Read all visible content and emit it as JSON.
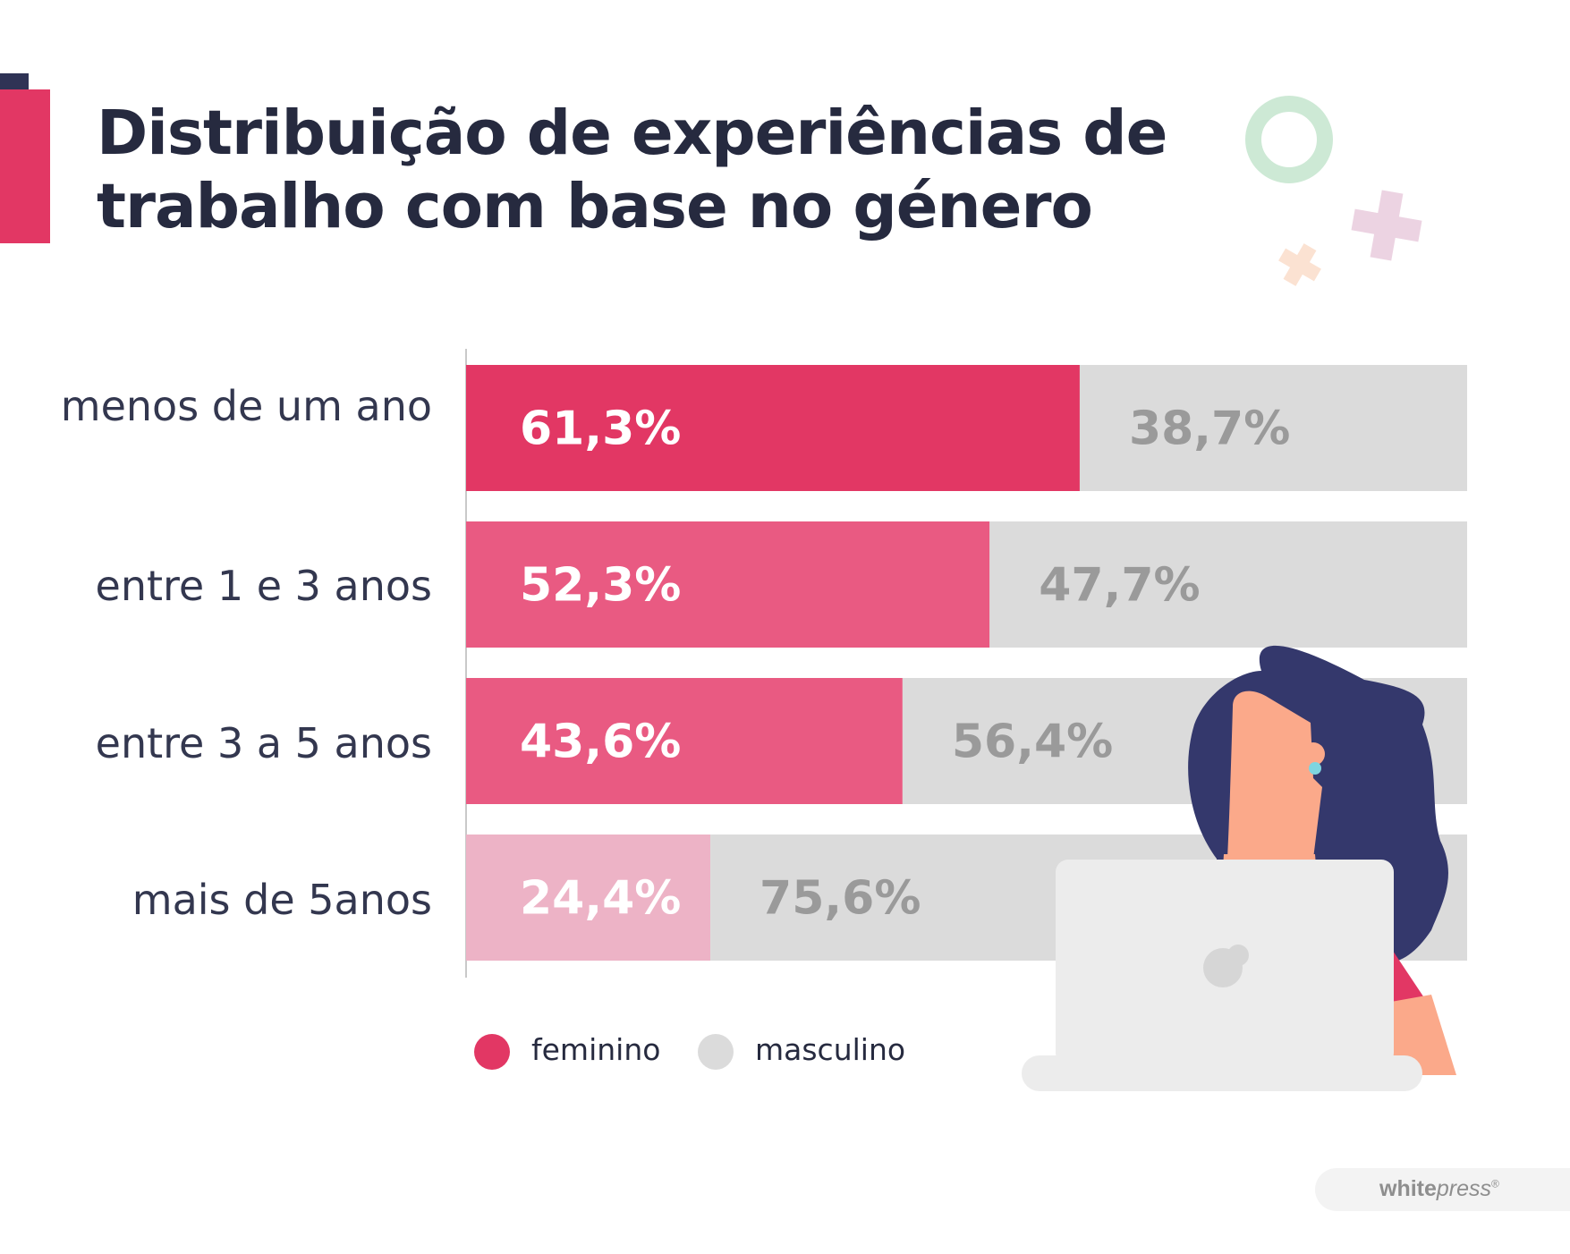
{
  "title": {
    "line1": "Distribuição de experiências de",
    "line2": "trabalho com base no género"
  },
  "colors": {
    "accent": "#e23764",
    "feminino": [
      "#e23764",
      "#e95a82",
      "#e95a82",
      "#edb3c6"
    ],
    "masculino": "#dbdbdb",
    "masculino_label": "#9a9a9a",
    "text": "#262a3f"
  },
  "chart_data": {
    "type": "bar",
    "orientation": "horizontal",
    "stacked": true,
    "normalized": true,
    "categories": [
      "menos de um ano",
      "entre 1 e 3 anos",
      "entre 3 a 5 anos",
      "mais de 5anos"
    ],
    "series": [
      {
        "name": "feminino",
        "values": [
          61.3,
          52.3,
          43.6,
          24.4
        ],
        "labels": [
          "61,3%",
          "52,3%",
          "43,6%",
          "24,4%"
        ]
      },
      {
        "name": "masculino",
        "values": [
          38.7,
          47.7,
          56.4,
          75.6
        ],
        "labels": [
          "38,7%",
          "47,7%",
          "56,4%",
          "75,6%"
        ]
      }
    ],
    "xlim": [
      0,
      100
    ],
    "grid": false,
    "legend": "bottom"
  },
  "legend": {
    "feminino": "feminino",
    "masculino": "masculino"
  },
  "brand": {
    "bold": "white",
    "italic": "press",
    "mark": "®"
  },
  "icons": {
    "ring": "ring-decoration-icon",
    "plus_large": "plus-decoration-icon",
    "plus_small": "plus-small-decoration-icon",
    "woman": "woman-with-laptop-illustration",
    "laptop_logo": "laptop-logo-icon"
  }
}
